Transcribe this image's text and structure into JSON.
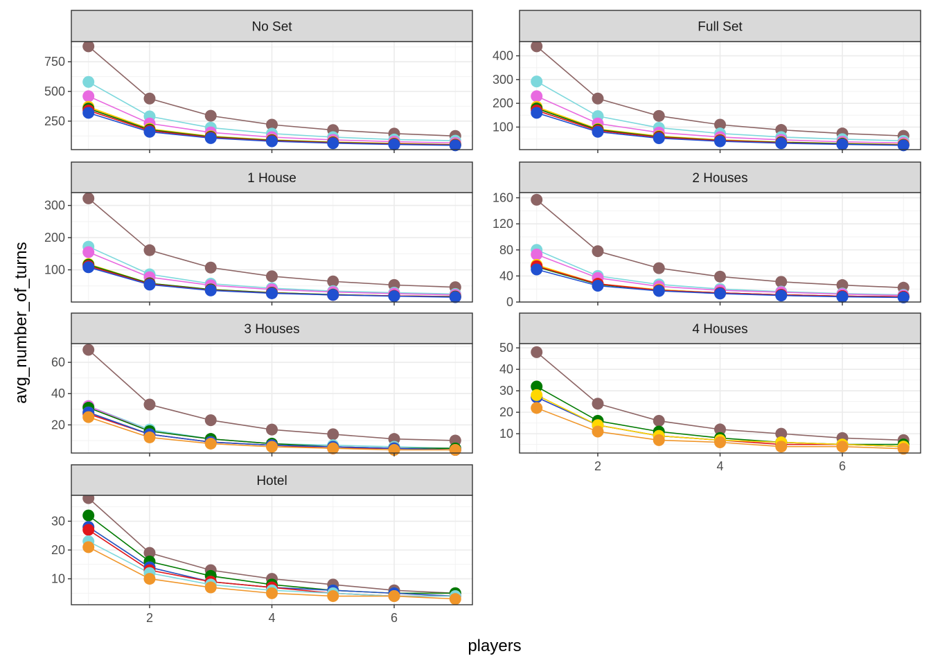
{
  "chart_data": {
    "type": "line",
    "xlabel": "players",
    "ylabel": "avg_number_of_turns",
    "x": [
      1,
      2,
      3,
      4,
      5,
      6,
      7
    ],
    "x_ticks": [
      2,
      4,
      6
    ],
    "xlim": [
      0.72,
      7.28
    ],
    "legend": "none",
    "colors": {
      "brown": "#8c6464",
      "cyan": "#7dd8dc",
      "pink": "#e86ae0",
      "gold": "#ffd700",
      "orange": "#f0962a",
      "green": "#007a00",
      "red": "#e0161b",
      "blue": "#2050d0"
    },
    "facets": [
      {
        "title": "No Set",
        "ylim": [
          10,
          920
        ],
        "y_ticks": [
          250,
          500,
          750
        ],
        "series": [
          {
            "name": "brown",
            "values": [
              880,
              440,
              295,
              220,
              175,
              145,
              125
            ]
          },
          {
            "name": "cyan",
            "values": [
              580,
              290,
              195,
              145,
              115,
              95,
              85
            ]
          },
          {
            "name": "pink",
            "values": [
              460,
              230,
              155,
              115,
              92,
              77,
              66
            ]
          },
          {
            "name": "gold",
            "values": [
              370,
              185,
              123,
              92,
              74,
              62,
              53
            ]
          },
          {
            "name": "orange",
            "values": [
              360,
              180,
              120,
              90,
              72,
              60,
              51
            ]
          },
          {
            "name": "green",
            "values": [
              355,
              178,
              118,
              89,
              71,
              59,
              51
            ]
          },
          {
            "name": "red",
            "values": [
              340,
              170,
              113,
              85,
              68,
              57,
              49
            ]
          },
          {
            "name": "blue",
            "values": [
              320,
              160,
              107,
              80,
              64,
              53,
              46
            ]
          }
        ]
      },
      {
        "title": "Full Set",
        "ylim": [
          5,
          460
        ],
        "y_ticks": [
          100,
          200,
          300,
          400
        ],
        "series": [
          {
            "name": "brown",
            "values": [
              440,
              220,
              147,
              110,
              88,
              73,
              63
            ]
          },
          {
            "name": "cyan",
            "values": [
              292,
              146,
              97,
              73,
              58,
              49,
              42
            ]
          },
          {
            "name": "pink",
            "values": [
              230,
              115,
              77,
              58,
              46,
              38,
              33
            ]
          },
          {
            "name": "gold",
            "values": [
              185,
              92,
              62,
              46,
              37,
              31,
              27
            ]
          },
          {
            "name": "orange",
            "values": [
              180,
              90,
              60,
              45,
              36,
              30,
              26
            ]
          },
          {
            "name": "green",
            "values": [
              178,
              89,
              59,
              44,
              36,
              30,
              25
            ]
          },
          {
            "name": "red",
            "values": [
              170,
              85,
              57,
              43,
              34,
              28,
              24
            ]
          },
          {
            "name": "blue",
            "values": [
              160,
              80,
              53,
              40,
              32,
              27,
              23
            ]
          }
        ]
      },
      {
        "title": "1 House",
        "ylim": [
          0,
          340
        ],
        "y_ticks": [
          100,
          200,
          300
        ],
        "series": [
          {
            "name": "brown",
            "values": [
              322,
              161,
              107,
              80,
              64,
              53,
              46
            ]
          },
          {
            "name": "cyan",
            "values": [
              172,
              86,
              57,
              43,
              34,
              29,
              25
            ]
          },
          {
            "name": "pink",
            "values": [
              155,
              77,
              52,
              39,
              31,
              26,
              22
            ]
          },
          {
            "name": "gold",
            "values": [
              118,
              58,
              39,
              29,
              23,
              19,
              17
            ]
          },
          {
            "name": "orange",
            "values": [
              115,
              57,
              38,
              29,
              23,
              19,
              16
            ]
          },
          {
            "name": "green",
            "values": [
              116,
              58,
              39,
              29,
              23,
              19,
              17
            ]
          },
          {
            "name": "red",
            "values": [
              112,
              56,
              37,
              28,
              22,
              19,
              16
            ]
          },
          {
            "name": "blue",
            "values": [
              108,
              54,
              36,
              27,
              22,
              18,
              15
            ]
          }
        ]
      },
      {
        "title": "2 Houses",
        "ylim": [
          0,
          168
        ],
        "y_ticks": [
          0,
          40,
          80,
          120,
          160
        ],
        "series": [
          {
            "name": "brown",
            "values": [
              157,
              78,
              52,
              39,
              31,
              26,
              22
            ]
          },
          {
            "name": "cyan",
            "values": [
              80,
              40,
              27,
              20,
              16,
              13,
              11
            ]
          },
          {
            "name": "pink",
            "values": [
              73,
              37,
              24,
              18,
              15,
              12,
              10
            ]
          },
          {
            "name": "gold",
            "values": [
              57,
              28,
              19,
              14,
              11,
              9,
              8
            ]
          },
          {
            "name": "orange",
            "values": [
              55,
              28,
              18,
              14,
              11,
              9,
              8
            ]
          },
          {
            "name": "green",
            "values": [
              54,
              27,
              18,
              14,
              11,
              9,
              8
            ]
          },
          {
            "name": "red",
            "values": [
              55,
              28,
              18,
              14,
              11,
              9,
              8
            ]
          },
          {
            "name": "blue",
            "values": [
              50,
              25,
              17,
              13,
              10,
              8,
              7
            ]
          }
        ]
      },
      {
        "title": "3 Houses",
        "ylim": [
          2,
          72
        ],
        "y_ticks": [
          20,
          40,
          60
        ],
        "series": [
          {
            "name": "brown",
            "values": [
              68,
              33,
              23,
              17,
              14,
              11,
              10
            ]
          },
          {
            "name": "cyan",
            "values": [
              32,
              17,
              11,
              8,
              7,
              6,
              5
            ]
          },
          {
            "name": "pink",
            "values": [
              32,
              16,
              11,
              8,
              6,
              5,
              5
            ]
          },
          {
            "name": "green",
            "values": [
              31,
              16,
              11,
              8,
              6,
              5,
              5
            ]
          },
          {
            "name": "gold",
            "values": [
              28,
              14,
              9,
              7,
              6,
              5,
              4
            ]
          },
          {
            "name": "red",
            "values": [
              27,
              14,
              9,
              7,
              5,
              5,
              4
            ]
          },
          {
            "name": "blue",
            "values": [
              28,
              14,
              9,
              7,
              6,
              5,
              4
            ]
          },
          {
            "name": "orange",
            "values": [
              25,
              12,
              8,
              6,
              5,
              4,
              4
            ]
          }
        ]
      },
      {
        "title": "4 Houses",
        "ylim": [
          1,
          52
        ],
        "y_ticks": [
          10,
          20,
          30,
          40,
          50
        ],
        "series": [
          {
            "name": "brown",
            "values": [
              48,
              24,
              16,
              12,
              10,
              8,
              7
            ]
          },
          {
            "name": "green",
            "values": [
              32,
              16,
              11,
              8,
              6,
              5,
              5
            ]
          },
          {
            "name": "red",
            "values": [
              27,
              14,
              9,
              7,
              5,
              5,
              4
            ]
          },
          {
            "name": "blue",
            "values": [
              27,
              14,
              9,
              7,
              6,
              5,
              4
            ]
          },
          {
            "name": "gold",
            "values": [
              28,
              14,
              9,
              7,
              6,
              5,
              4
            ]
          },
          {
            "name": "orange",
            "values": [
              22,
              11,
              7,
              6,
              4,
              4,
              3
            ]
          }
        ]
      },
      {
        "title": "Hotel",
        "ylim": [
          1,
          39
        ],
        "y_ticks": [
          10,
          20,
          30
        ],
        "series": [
          {
            "name": "brown",
            "values": [
              38,
              19,
              13,
              10,
              8,
              6,
              5
            ]
          },
          {
            "name": "green",
            "values": [
              32,
              16,
              11,
              8,
              6,
              5,
              5
            ]
          },
          {
            "name": "gold",
            "values": [
              28,
              14,
              9,
              7,
              6,
              5,
              4
            ]
          },
          {
            "name": "blue",
            "values": [
              28,
              14,
              9,
              7,
              6,
              5,
              4
            ]
          },
          {
            "name": "red",
            "values": [
              27,
              13,
              9,
              7,
              5,
              4,
              4
            ]
          },
          {
            "name": "cyan",
            "values": [
              23,
              12,
              8,
              6,
              5,
              4,
              4
            ]
          },
          {
            "name": "orange",
            "values": [
              21,
              10,
              7,
              5,
              4,
              4,
              3
            ]
          }
        ]
      }
    ]
  }
}
